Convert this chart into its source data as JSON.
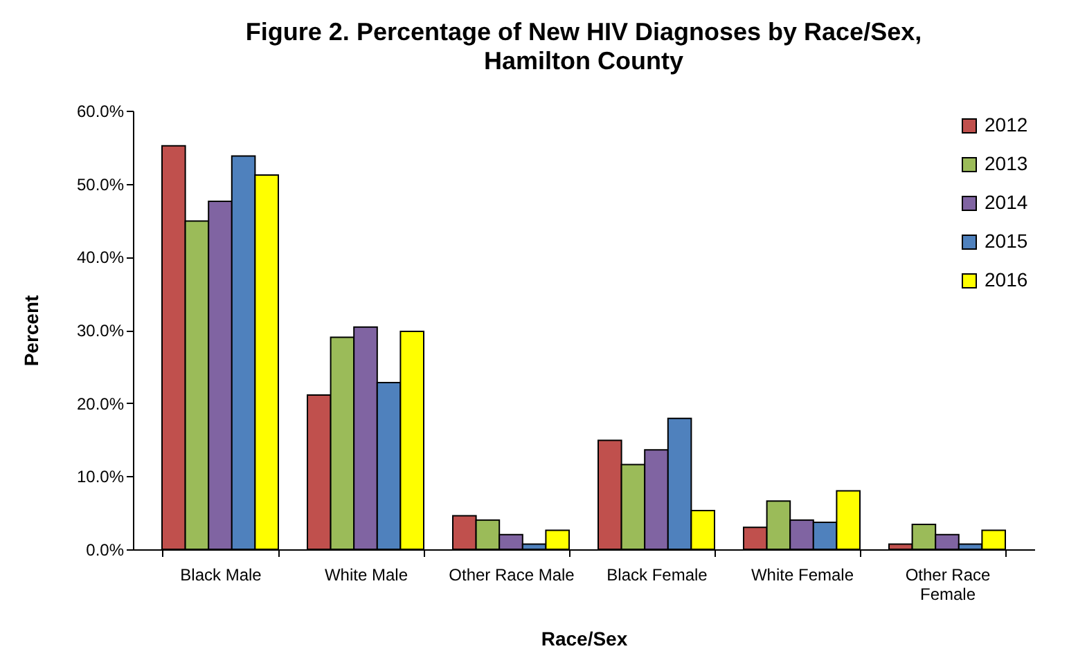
{
  "chart_data": {
    "type": "bar",
    "title": "Figure 2. Percentage of New HIV Diagnoses by Race/Sex,",
    "subtitle": "Hamilton County",
    "xlabel": "Race/Sex",
    "ylabel": "Percent",
    "categories": [
      "Black Male",
      "White Male",
      "Other Race Male",
      "Black Female",
      "White Female",
      "Other Race Female"
    ],
    "series": [
      {
        "name": "2012",
        "color": "#c0504d",
        "values": [
          55.2,
          21.1,
          4.6,
          14.9,
          3.0,
          0.7
        ]
      },
      {
        "name": "2013",
        "color": "#9bbb59",
        "values": [
          44.9,
          29.0,
          4.0,
          11.6,
          6.6,
          3.4
        ]
      },
      {
        "name": "2014",
        "color": "#8064a2",
        "values": [
          47.6,
          30.4,
          2.0,
          13.6,
          4.0,
          2.0
        ]
      },
      {
        "name": "2015",
        "color": "#4f81bd",
        "values": [
          53.8,
          22.8,
          0.7,
          17.9,
          3.7,
          0.7
        ]
      },
      {
        "name": "2016",
        "color": "#ffff00",
        "values": [
          51.2,
          29.8,
          2.6,
          5.3,
          8.0,
          2.6
        ]
      }
    ],
    "ylim": [
      0,
      60
    ],
    "yticks": [
      {
        "value": 0,
        "label": "0.0%"
      },
      {
        "value": 10,
        "label": "10.0%"
      },
      {
        "value": 20,
        "label": "20.0%"
      },
      {
        "value": 30,
        "label": "30.0%"
      },
      {
        "value": 40,
        "label": "40.0%"
      },
      {
        "value": 50,
        "label": "50.0%"
      },
      {
        "value": 60,
        "label": "60.0%"
      }
    ],
    "grid": false,
    "legend": "top right"
  }
}
